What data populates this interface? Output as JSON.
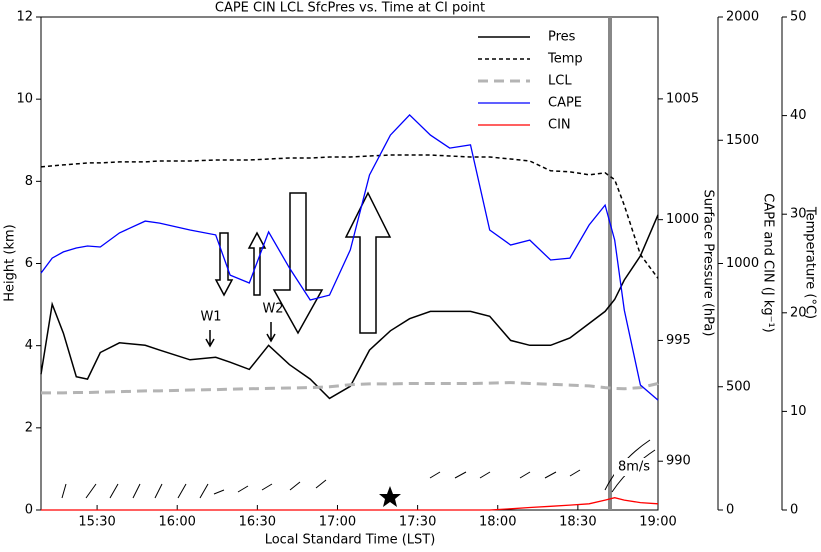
{
  "chart_data": {
    "type": "line",
    "title": "CAPE CIN LCL SfcPres vs. Time at CI point",
    "xlabel": "Local Standard Time (LST)",
    "ylabel": "Height (km)",
    "y2label": "Surface Pressure (hPa)",
    "y3label": "CAPE and CIN (J kg⁻¹)",
    "y4label": "Temperature (°C)",
    "xlim": [
      15.15,
      19.0
    ],
    "xticks": [
      {
        "value": 15.5,
        "label": "15:30"
      },
      {
        "value": 16.0,
        "label": "16:00"
      },
      {
        "value": 16.5,
        "label": "16:30"
      },
      {
        "value": 17.0,
        "label": "17:00"
      },
      {
        "value": 17.5,
        "label": "17:30"
      },
      {
        "value": 18.0,
        "label": "18:00"
      },
      {
        "value": 18.5,
        "label": "18:30"
      },
      {
        "value": 19.0,
        "label": "19:00"
      }
    ],
    "ylim": [
      0,
      12
    ],
    "yticks": [
      0,
      2,
      4,
      6,
      8,
      10,
      12
    ],
    "y2lim": [
      987.98,
      1008.39
    ],
    "y2ticks": [
      990,
      995,
      1000,
      1005
    ],
    "y3lim": [
      0,
      2000
    ],
    "y3ticks": [
      0,
      500,
      1000,
      1500,
      2000
    ],
    "y4lim": [
      0,
      50
    ],
    "y4ticks": [
      0,
      10,
      20,
      30,
      40,
      50
    ],
    "x": [
      15.15,
      15.22,
      15.29,
      15.37,
      15.44,
      15.52,
      15.64,
      15.8,
      15.89,
      16.08,
      16.24,
      16.33,
      16.45,
      16.57,
      16.7,
      16.83,
      16.95,
      17.08,
      17.2,
      17.33,
      17.45,
      17.58,
      17.7,
      17.83,
      17.95,
      18.08,
      18.2,
      18.33,
      18.45,
      18.57,
      18.67,
      18.73,
      18.79,
      18.89,
      19.0
    ],
    "series": [
      {
        "name": "Pres",
        "color": "#000000",
        "axis": "y2",
        "dash": "none",
        "width": 1.5,
        "values": [
          993.6,
          996.5,
          995.3,
          993.5,
          993.4,
          994.5,
          994.9,
          994.8,
          994.6,
          994.2,
          994.3,
          994.1,
          993.8,
          994.8,
          994.0,
          993.4,
          992.6,
          993.1,
          994.6,
          995.4,
          995.9,
          996.2,
          996.2,
          996.2,
          996.0,
          995.0,
          994.8,
          994.8,
          995.1,
          995.7,
          996.2,
          996.7,
          997.5,
          998.5,
          1000.2
        ]
      },
      {
        "name": "Temp",
        "color": "#000000",
        "axis": "y4",
        "dash": "4,3",
        "width": 1.5,
        "values": [
          34.8,
          34.9,
          35.0,
          35.1,
          35.2,
          35.2,
          35.3,
          35.3,
          35.4,
          35.4,
          35.5,
          35.5,
          35.5,
          35.6,
          35.7,
          35.7,
          35.8,
          35.8,
          35.9,
          36.0,
          36.0,
          36.0,
          35.9,
          35.8,
          35.8,
          35.6,
          35.4,
          34.4,
          34.3,
          34.0,
          34.2,
          33.5,
          30.9,
          25.9,
          23.5
        ]
      },
      {
        "name": "LCL",
        "color": "#b4b4b4",
        "axis": "y",
        "dash": "10,6",
        "width": 3,
        "values": [
          2.85,
          2.85,
          2.85,
          2.86,
          2.86,
          2.87,
          2.88,
          2.9,
          2.9,
          2.92,
          2.93,
          2.94,
          2.95,
          2.96,
          2.97,
          2.98,
          3.0,
          3.05,
          3.07,
          3.07,
          3.08,
          3.08,
          3.08,
          3.08,
          3.09,
          3.1,
          3.08,
          3.06,
          3.04,
          3.02,
          2.98,
          2.96,
          2.95,
          2.98,
          3.08
        ]
      },
      {
        "name": "CAPE",
        "color": "#0000ff",
        "axis": "y3",
        "dash": "none",
        "width": 1.3,
        "values": [
          961,
          1022,
          1047,
          1063,
          1071,
          1067,
          1124,
          1172,
          1164,
          1136,
          1116,
          953,
          921,
          1128,
          982,
          852,
          872,
          1055,
          1359,
          1521,
          1603,
          1521,
          1468,
          1481,
          1136,
          1075,
          1095,
          1014,
          1022,
          1156,
          1237,
          1095,
          811,
          507,
          446
        ]
      },
      {
        "name": "CIN",
        "color": "#ff0000",
        "axis": "y3",
        "dash": "none",
        "width": 1.3,
        "values": [
          0,
          0,
          0,
          0,
          0,
          0,
          0,
          0,
          0,
          0,
          0,
          0,
          0,
          0,
          0,
          0,
          0,
          0,
          0,
          0,
          0,
          0,
          0,
          0,
          0,
          5,
          10,
          15,
          20,
          25,
          40,
          50,
          40,
          30,
          25
        ]
      }
    ],
    "annotations": [
      "W1",
      "W2"
    ],
    "wind_scale_label": "8m/s",
    "legend": "upper right"
  }
}
